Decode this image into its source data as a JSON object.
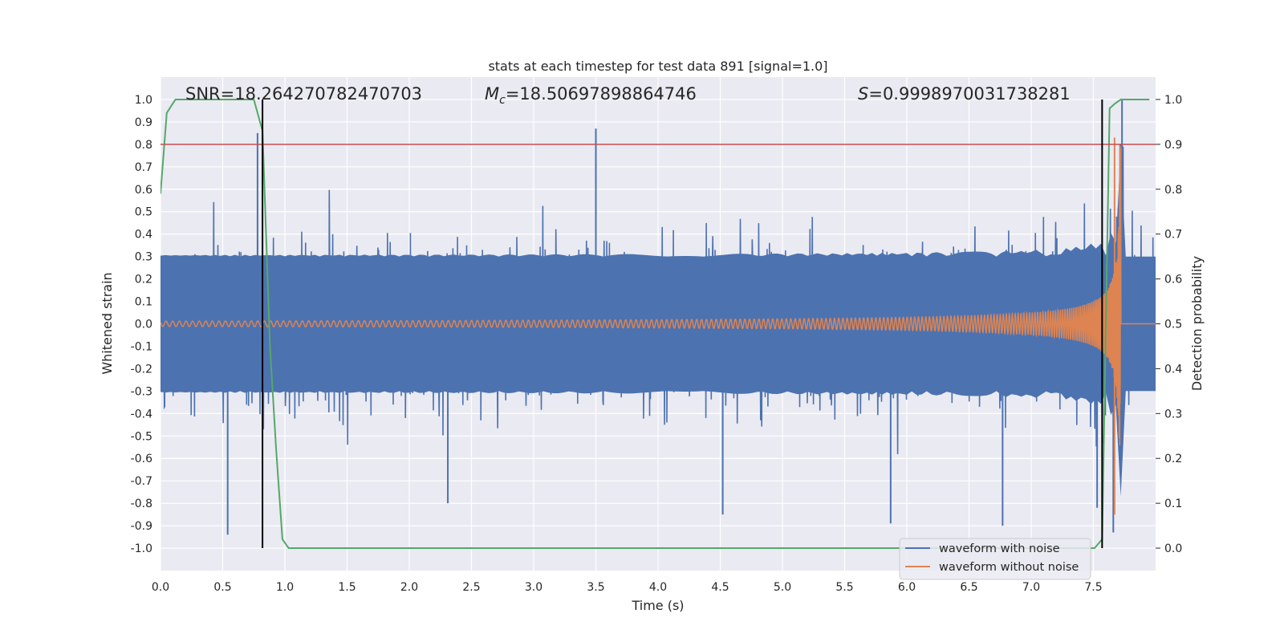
{
  "chart_data": {
    "type": "line",
    "title": "stats at each timestep for test data 891 [signal=1.0]",
    "xlabel": "Time (s)",
    "ylabel": "Whitened strain",
    "ylabel_right": "Detection probability",
    "xlim": [
      0.0,
      8.0
    ],
    "ylim": [
      -1.1,
      1.1
    ],
    "ylim_right": [
      -0.05,
      1.05
    ],
    "x_ticks": [
      "0.0",
      "0.5",
      "1.0",
      "1.5",
      "2.0",
      "2.5",
      "3.0",
      "3.5",
      "4.0",
      "4.5",
      "5.0",
      "5.5",
      "6.0",
      "6.5",
      "7.0",
      "7.5"
    ],
    "y_ticks": [
      "1.0",
      "0.9",
      "0.8",
      "0.7",
      "0.6",
      "0.5",
      "0.4",
      "0.3",
      "0.2",
      "0.1",
      "0.0",
      "-0.1",
      "-0.2",
      "-0.3",
      "-0.4",
      "-0.5",
      "-0.6",
      "-0.7",
      "-0.8",
      "-0.9",
      "-1.0"
    ],
    "y_ticks_right": [
      "1.0",
      "0.9",
      "0.8",
      "0.7",
      "0.6",
      "0.5",
      "0.4",
      "0.3",
      "0.2",
      "0.1",
      "0.0"
    ],
    "grid": true,
    "legend_position": "lower-right",
    "annotations": {
      "snr": "SNR=18.264270782470703",
      "mc_symbol": "M",
      "mc_sub": "c",
      "mc_value": "=18.50697898864746",
      "s_symbol": "S",
      "s_value": "=0.9998970031738281"
    },
    "threshold": 0.9,
    "vertical_lines": [
      0.82,
      7.57
    ],
    "noise_envelope": {
      "x_range": [
        0.0,
        8.0
      ],
      "typical_amplitude": 0.45,
      "max_amplitude": 0.87,
      "min_amplitude": -0.94
    },
    "series": [
      {
        "name": "waveform with noise",
        "color": "#4c72b0",
        "peaks": [
          {
            "x": 0.54,
            "y": -0.94
          },
          {
            "x": 0.78,
            "y": 0.85
          },
          {
            "x": 2.31,
            "y": -0.8
          },
          {
            "x": 3.5,
            "y": 0.87
          },
          {
            "x": 4.52,
            "y": -0.85
          },
          {
            "x": 5.87,
            "y": -0.89
          },
          {
            "x": 6.77,
            "y": -0.9
          },
          {
            "x": 7.53,
            "y": -0.82
          },
          {
            "x": 7.73,
            "y": 1.0
          },
          {
            "x": 7.66,
            "y": -0.93
          }
        ]
      },
      {
        "name": "waveform without noise",
        "color": "#dd8452",
        "start_amplitude": 0.012,
        "merger_time": 7.72,
        "peak_amplitude": 0.83,
        "peak_min": -0.85
      },
      {
        "name": "detection probability",
        "color": "#55a868",
        "axis": "right",
        "points": [
          [
            0.0,
            0.79
          ],
          [
            0.05,
            0.97
          ],
          [
            0.12,
            1.0
          ],
          [
            0.75,
            1.0
          ],
          [
            0.82,
            0.93
          ],
          [
            0.88,
            0.45
          ],
          [
            0.93,
            0.22
          ],
          [
            0.98,
            0.02
          ],
          [
            1.03,
            0.0
          ],
          [
            7.51,
            0.0
          ],
          [
            7.57,
            0.02
          ],
          [
            7.6,
            0.5
          ],
          [
            7.63,
            0.98
          ],
          [
            7.67,
            0.99
          ],
          [
            7.72,
            1.0
          ],
          [
            7.95,
            1.0
          ]
        ]
      },
      {
        "name": "threshold",
        "color": "#c44e52",
        "axis": "right",
        "value": 0.9
      }
    ]
  }
}
